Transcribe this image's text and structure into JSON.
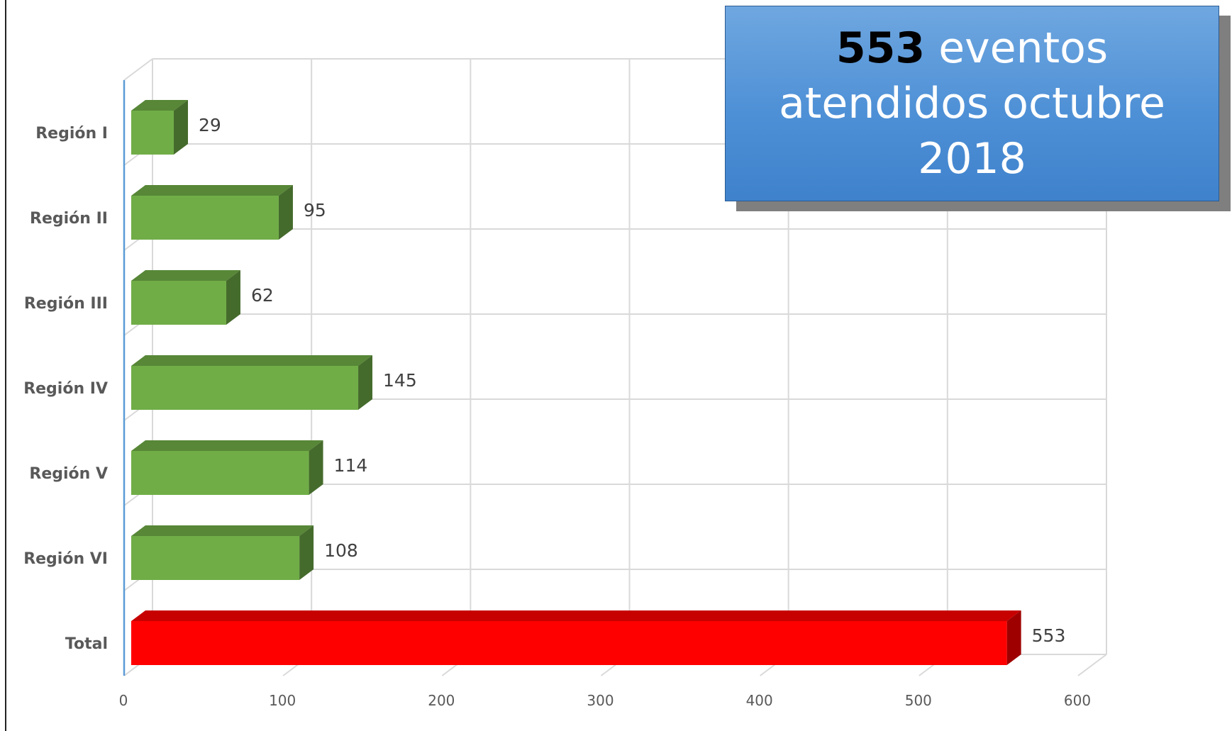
{
  "title_box": {
    "number": "553",
    "line1_rest": " eventos",
    "line2": "atendidos octubre",
    "line3": "2018"
  },
  "chart_data": {
    "type": "bar",
    "orientation": "horizontal",
    "style": "3d",
    "categories": [
      "Región I",
      "Región II",
      "Región III",
      "Región IV",
      "Región V",
      "Región VI",
      "Total"
    ],
    "values": [
      29,
      95,
      62,
      145,
      114,
      108,
      553
    ],
    "data_labels": [
      "29",
      "95",
      "62",
      "145",
      "114",
      "108",
      "553"
    ],
    "bar_colors": [
      "#70ad47",
      "#70ad47",
      "#70ad47",
      "#70ad47",
      "#70ad47",
      "#70ad47",
      "#ff0000"
    ],
    "xlim": [
      0,
      600
    ],
    "x_ticks": [
      0,
      100,
      200,
      300,
      400,
      500,
      600
    ],
    "x_tick_labels": [
      "0",
      "100",
      "200",
      "300",
      "400",
      "500",
      "600"
    ],
    "grid": true,
    "xlabel": "",
    "ylabel": ""
  }
}
